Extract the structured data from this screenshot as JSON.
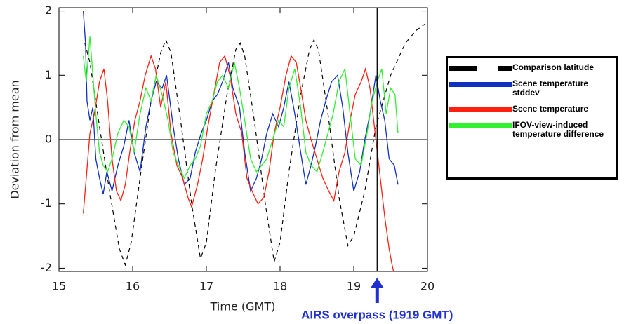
{
  "chart_data": {
    "type": "line",
    "xlabel": "Time (GMT)",
    "ylabel": "Deviation from mean",
    "xlim": [
      15,
      20
    ],
    "ylim": [
      -2.05,
      2.05
    ],
    "xticks": [
      15,
      16,
      17,
      18,
      19,
      20
    ],
    "yticks": [
      -2,
      -1,
      0,
      1,
      2
    ],
    "zero_line": true,
    "annotation": {
      "text": "AIRS overpass (1919 GMT)",
      "x": 19.317,
      "color": "#2030d0"
    },
    "series": [
      {
        "name": "Comparison latitude",
        "color": "#000000",
        "dashed": true,
        "x": [
          15.35,
          15.42,
          15.55,
          15.7,
          15.82,
          15.9,
          15.98,
          16.1,
          16.25,
          16.38,
          16.45,
          16.52,
          16.65,
          16.8,
          16.92,
          17.0,
          17.12,
          17.28,
          17.4,
          17.46,
          17.52,
          17.65,
          17.8,
          17.92,
          18.0,
          18.12,
          18.28,
          18.4,
          18.46,
          18.52,
          18.65,
          18.8,
          18.92,
          19.0,
          19.15,
          19.3,
          19.5,
          19.7,
          19.85,
          19.97
        ],
        "values": [
          1.5,
          1.2,
          0.2,
          -0.9,
          -1.7,
          -1.95,
          -1.6,
          -0.6,
          0.6,
          1.35,
          1.55,
          1.35,
          0.3,
          -1.0,
          -1.85,
          -1.6,
          -0.5,
          0.7,
          1.4,
          1.5,
          1.3,
          0.3,
          -1.0,
          -1.9,
          -1.6,
          -0.5,
          0.7,
          1.4,
          1.55,
          1.4,
          0.4,
          -0.9,
          -1.65,
          -1.5,
          -0.8,
          0.2,
          1.0,
          1.5,
          1.7,
          1.8
        ]
      },
      {
        "name": "Scene temperature stddev",
        "color": "#1030c0",
        "x": [
          15.33,
          15.36,
          15.38,
          15.42,
          15.46,
          15.5,
          15.55,
          15.6,
          15.65,
          15.72,
          15.8,
          15.88,
          15.95,
          16.02,
          16.1,
          16.18,
          16.25,
          16.32,
          16.4,
          16.46,
          16.55,
          16.62,
          16.7,
          16.78,
          16.85,
          16.93,
          17.0,
          17.08,
          17.15,
          17.22,
          17.3,
          17.36,
          17.45,
          17.52,
          17.6,
          17.68,
          17.75,
          17.82,
          17.9,
          17.98,
          18.05,
          18.12,
          18.2,
          18.28,
          18.35,
          18.42,
          18.48,
          18.55,
          18.62,
          18.7,
          18.78,
          18.85,
          18.92,
          19.0,
          19.08,
          19.15,
          19.22,
          19.3,
          19.36,
          19.42,
          19.48,
          19.55,
          19.6
        ],
        "values": [
          2.0,
          1.5,
          0.6,
          0.3,
          0.5,
          -0.3,
          -0.6,
          -0.85,
          -0.5,
          -0.8,
          -0.4,
          -0.1,
          0.3,
          -0.2,
          -0.5,
          0.2,
          0.6,
          0.9,
          0.8,
          1.0,
          0.2,
          -0.3,
          -0.7,
          -0.6,
          -0.2,
          0.1,
          0.3,
          0.6,
          0.7,
          0.9,
          1.2,
          0.8,
          0.5,
          -0.2,
          -0.8,
          -0.6,
          -0.3,
          0.1,
          0.4,
          0.2,
          0.5,
          0.9,
          0.4,
          -0.2,
          -0.7,
          -0.4,
          -0.1,
          0.3,
          0.6,
          0.9,
          1.0,
          0.5,
          -0.2,
          -0.8,
          -0.5,
          0.0,
          0.4,
          1.0,
          0.6,
          0.3,
          -0.3,
          -0.4,
          -0.7
        ]
      },
      {
        "name": "Scene temperature",
        "color": "#ff2010",
        "x": [
          15.33,
          15.37,
          15.42,
          15.48,
          15.55,
          15.61,
          15.66,
          15.72,
          15.78,
          15.84,
          15.9,
          15.96,
          16.03,
          16.1,
          16.17,
          16.25,
          16.31,
          16.38,
          16.45,
          16.52,
          16.6,
          16.68,
          16.75,
          16.8,
          16.88,
          16.95,
          17.02,
          17.1,
          17.18,
          17.25,
          17.32,
          17.4,
          17.48,
          17.55,
          17.62,
          17.7,
          17.78,
          17.85,
          17.92,
          18.0,
          18.08,
          18.15,
          18.22,
          18.28,
          18.35,
          18.42,
          18.5,
          18.58,
          18.66,
          18.73,
          18.8,
          18.88,
          18.95,
          19.02,
          19.1,
          19.16,
          19.22,
          19.28,
          19.35,
          19.42,
          19.48,
          19.52,
          19.55
        ],
        "values": [
          -1.15,
          -0.6,
          0.1,
          0.4,
          0.9,
          1.1,
          0.6,
          -0.3,
          -0.8,
          -0.95,
          -0.7,
          -0.2,
          0.3,
          0.6,
          1.0,
          1.3,
          1.1,
          0.5,
          0.9,
          0.1,
          -0.4,
          -0.6,
          -0.9,
          -1.05,
          -0.7,
          -0.3,
          0.2,
          0.7,
          1.2,
          1.3,
          1.0,
          0.4,
          0.1,
          -0.6,
          -0.8,
          -1.0,
          -0.9,
          -0.5,
          0.1,
          0.5,
          1.0,
          1.3,
          1.2,
          0.8,
          0.3,
          0.0,
          -0.3,
          -0.6,
          -0.8,
          -0.95,
          -0.5,
          -0.2,
          0.3,
          0.7,
          0.9,
          1.1,
          0.8,
          0.2,
          -0.5,
          -1.2,
          -1.7,
          -1.95,
          -2.1
        ]
      },
      {
        "name": "IFOV-view-induced temperature difference",
        "color": "#30f030",
        "x": [
          15.33,
          15.37,
          15.42,
          15.46,
          15.5,
          15.55,
          15.6,
          15.66,
          15.72,
          15.8,
          15.88,
          15.95,
          16.02,
          16.1,
          16.18,
          16.25,
          16.32,
          16.4,
          16.48,
          16.55,
          16.62,
          16.7,
          16.78,
          16.85,
          16.92,
          17.0,
          17.08,
          17.15,
          17.22,
          17.3,
          17.38,
          17.45,
          17.52,
          17.6,
          17.68,
          17.75,
          17.82,
          17.9,
          17.98,
          18.05,
          18.12,
          18.2,
          18.28,
          18.35,
          18.42,
          18.5,
          18.58,
          18.65,
          18.72,
          18.8,
          18.88,
          18.95,
          19.02,
          19.1,
          19.18,
          19.25,
          19.32,
          19.38,
          19.44,
          19.5,
          19.56,
          19.6
        ],
        "values": [
          1.3,
          0.9,
          1.6,
          1.0,
          0.4,
          -0.2,
          -0.4,
          -0.5,
          -0.3,
          0.1,
          0.3,
          0.2,
          -0.2,
          0.4,
          0.8,
          0.6,
          1.0,
          0.7,
          0.3,
          -0.2,
          -0.4,
          -0.6,
          -0.4,
          -0.3,
          -0.1,
          0.4,
          0.6,
          0.9,
          1.0,
          0.8,
          1.2,
          0.8,
          0.3,
          -0.3,
          -0.5,
          -0.4,
          -0.3,
          0.0,
          0.3,
          0.2,
          0.8,
          1.1,
          0.5,
          -0.2,
          -0.4,
          -0.5,
          -0.2,
          0.1,
          0.4,
          0.9,
          1.1,
          0.4,
          -0.3,
          -0.4,
          0.1,
          0.6,
          0.9,
          1.1,
          0.4,
          0.8,
          0.7,
          0.1
        ]
      }
    ]
  }
}
